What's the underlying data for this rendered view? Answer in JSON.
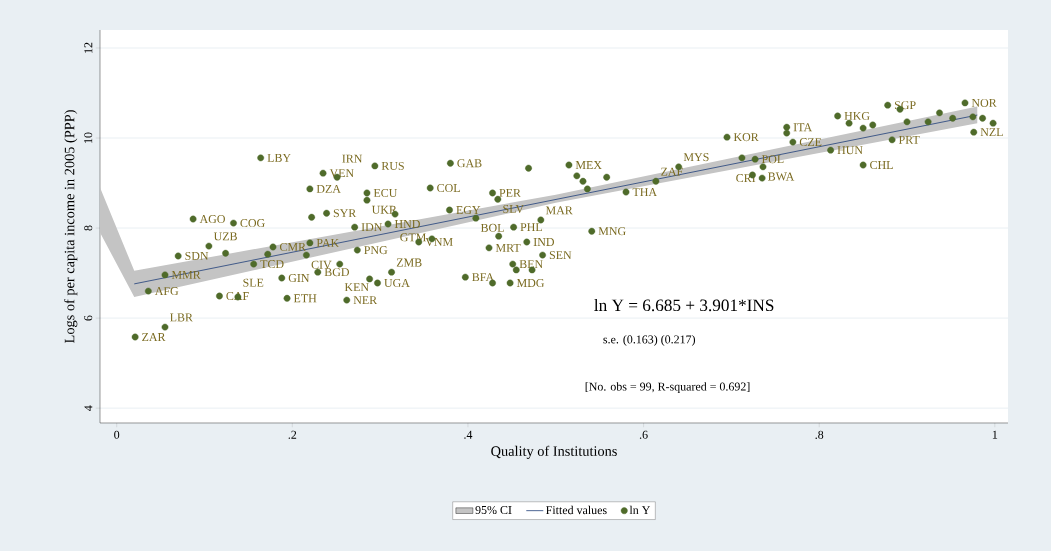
{
  "chart_data": {
    "type": "scatter",
    "xlabel": "Quality of Institutions",
    "ylabel": "Logs of per capita income in 2005 (PPP)",
    "xlim": [
      -0.019,
      1.015
    ],
    "ylim": [
      3.67,
      12.4
    ],
    "xticks": [
      {
        "value": 0,
        "label": "0"
      },
      {
        "value": 0.2,
        "label": ".2"
      },
      {
        "value": 0.4,
        "label": ".4"
      },
      {
        "value": 0.6,
        "label": ".6"
      },
      {
        "value": 0.8,
        "label": ".8"
      },
      {
        "value": 1,
        "label": "1"
      }
    ],
    "yticks": [
      4,
      6,
      8,
      10,
      12
    ],
    "grid": "y",
    "legend": "bottom",
    "marker": "circle",
    "series": [
      {
        "name": "95% CI",
        "type": "area",
        "color": "#c4c4c4",
        "x": [
          -0.019,
          0.02,
          0.5,
          0.98
        ],
        "values": [
          null,
          null,
          null,
          null
        ],
        "lower": [
          7.9,
          6.47,
          8.56,
          10.33
        ],
        "upper": [
          8.9,
          7.05,
          8.74,
          10.7
        ]
      },
      {
        "name": "Fitted values",
        "type": "line",
        "color": "#1f3f7a",
        "line_style": "solid",
        "marker": "none",
        "x": [
          0.02,
          0.98
        ],
        "values": [
          6.76,
          10.51
        ]
      },
      {
        "name": "ln Y",
        "color": "#4f6b2a",
        "x": [
          0.021,
          0.036,
          0.055,
          0.055,
          0.07,
          0.087,
          0.105,
          0.117,
          0.124,
          0.133,
          0.138,
          0.156,
          0.164,
          0.172,
          0.178,
          0.188,
          0.194,
          0.216,
          0.22,
          0.22,
          0.222,
          0.229,
          0.235,
          0.239,
          0.251,
          0.254,
          0.262,
          0.271,
          0.274,
          0.285,
          0.285,
          0.288,
          0.294,
          0.297,
          0.309,
          0.313,
          0.317,
          0.344,
          0.357,
          0.359,
          0.379,
          0.38,
          0.397,
          0.409,
          0.424,
          0.428,
          0.428,
          0.434,
          0.435,
          0.448,
          0.451,
          0.452,
          0.455,
          0.467,
          0.469,
          0.473,
          0.483,
          0.485,
          0.515,
          0.524,
          0.531,
          0.536,
          0.541,
          0.558,
          0.58,
          0.614,
          0.64,
          0.695,
          0.712,
          0.724,
          0.727,
          0.735,
          0.736,
          0.763,
          0.763,
          0.77,
          0.813,
          0.821,
          0.834,
          0.85,
          0.85,
          0.861,
          0.878,
          0.883,
          0.892,
          0.9,
          0.924,
          0.937,
          0.952,
          0.966,
          0.975,
          0.976,
          0.986,
          0.998
        ],
        "values": [
          5.58,
          6.6,
          5.8,
          6.96,
          7.38,
          8.2,
          7.6,
          6.49,
          7.44,
          8.11,
          6.47,
          7.2,
          9.56,
          7.42,
          7.58,
          6.89,
          6.44,
          7.4,
          7.67,
          8.87,
          8.24,
          7.02,
          9.22,
          8.33,
          9.13,
          7.2,
          6.4,
          8.02,
          7.51,
          8.78,
          8.62,
          6.87,
          9.38,
          6.78,
          8.09,
          7.02,
          8.31,
          7.69,
          8.89,
          7.76,
          8.4,
          9.44,
          6.91,
          8.22,
          7.56,
          8.78,
          6.78,
          8.64,
          7.82,
          6.78,
          7.2,
          8.02,
          7.07,
          7.69,
          9.33,
          7.07,
          8.18,
          7.4,
          9.4,
          9.16,
          9.04,
          8.87,
          7.93,
          9.13,
          8.8,
          9.04,
          9.36,
          10.02,
          9.56,
          9.18,
          9.53,
          9.11,
          9.36,
          10.24,
          10.11,
          9.91,
          9.73,
          10.49,
          10.33,
          9.4,
          10.22,
          10.29,
          10.73,
          9.96,
          10.64,
          10.36,
          10.36,
          10.56,
          10.44,
          10.78,
          10.47,
          10.13,
          10.44,
          10.33
        ]
      }
    ],
    "annotations": [
      "ln Y = 6.685 + 3.901*INS",
      "s.e. (0.163) (0.217)",
      "[No. obs = 99, R-squared = 0.692]",
      {
        "text": "ZAR",
        "x": 0.021,
        "y": 5.58
      },
      {
        "text": "AFG",
        "x": 0.036,
        "y": 6.6
      },
      {
        "text": "LBR",
        "x": 0.055,
        "y": 5.8
      },
      {
        "text": "MMR",
        "x": 0.055,
        "y": 6.96
      },
      {
        "text": "SDN",
        "x": 0.07,
        "y": 7.38
      },
      {
        "text": "AGO",
        "x": 0.087,
        "y": 8.2
      },
      {
        "text": "UZB",
        "x": 0.105,
        "y": 7.6
      },
      {
        "text": "CAF",
        "x": 0.117,
        "y": 6.49
      },
      {
        "text": "COG",
        "x": 0.133,
        "y": 8.11
      },
      {
        "text": "SLE",
        "x": 0.138,
        "y": 6.47
      },
      {
        "text": "TCD",
        "x": 0.156,
        "y": 7.2
      },
      {
        "text": "LBY",
        "x": 0.164,
        "y": 9.56
      },
      {
        "text": "CMR",
        "x": 0.178,
        "y": 7.58
      },
      {
        "text": "GIN",
        "x": 0.188,
        "y": 6.89
      },
      {
        "text": "ETH",
        "x": 0.194,
        "y": 6.44
      },
      {
        "text": "CIV",
        "x": 0.216,
        "y": 7.4
      },
      {
        "text": "PAK",
        "x": 0.22,
        "y": 7.67
      },
      {
        "text": "DZA",
        "x": 0.22,
        "y": 8.87
      },
      {
        "text": "SYR",
        "x": 0.239,
        "y": 8.33
      },
      {
        "text": "BGD",
        "x": 0.229,
        "y": 7.02
      },
      {
        "text": "VEN",
        "x": 0.235,
        "y": 9.22
      },
      {
        "text": "IRN",
        "x": 0.251,
        "y": 9.13
      },
      {
        "text": "KEN",
        "x": 0.254,
        "y": 7.2
      },
      {
        "text": "NER",
        "x": 0.262,
        "y": 6.4
      },
      {
        "text": "IDN",
        "x": 0.271,
        "y": 8.02
      },
      {
        "text": "PNG",
        "x": 0.274,
        "y": 7.51
      },
      {
        "text": "ECU",
        "x": 0.285,
        "y": 8.78
      },
      {
        "text": "UKR",
        "x": 0.285,
        "y": 8.62
      },
      {
        "text": "RUS",
        "x": 0.294,
        "y": 9.38
      },
      {
        "text": "UGA",
        "x": 0.297,
        "y": 6.78
      },
      {
        "text": "HND",
        "x": 0.309,
        "y": 8.09
      },
      {
        "text": "ZMB",
        "x": 0.313,
        "y": 7.02
      },
      {
        "text": "GTM",
        "x": 0.317,
        "y": 8.31
      },
      {
        "text": "VNM",
        "x": 0.344,
        "y": 7.69
      },
      {
        "text": "COL",
        "x": 0.357,
        "y": 8.89
      },
      {
        "text": "EGY",
        "x": 0.379,
        "y": 8.4
      },
      {
        "text": "GAB",
        "x": 0.38,
        "y": 9.44
      },
      {
        "text": "BFA",
        "x": 0.397,
        "y": 6.91
      },
      {
        "text": "BOL",
        "x": 0.409,
        "y": 8.22
      },
      {
        "text": "MRT",
        "x": 0.424,
        "y": 7.56
      },
      {
        "text": "PER",
        "x": 0.428,
        "y": 8.78
      },
      {
        "text": "SLV",
        "x": 0.434,
        "y": 8.64
      },
      {
        "text": "MDG",
        "x": 0.448,
        "y": 6.78
      },
      {
        "text": "BEN",
        "x": 0.451,
        "y": 7.2
      },
      {
        "text": "PHL",
        "x": 0.452,
        "y": 8.02
      },
      {
        "text": "IND",
        "x": 0.467,
        "y": 7.69
      },
      {
        "text": "MAR",
        "x": 0.483,
        "y": 8.18
      },
      {
        "text": "SEN",
        "x": 0.485,
        "y": 7.4
      },
      {
        "text": "MEX",
        "x": 0.515,
        "y": 9.4
      },
      {
        "text": "MNG",
        "x": 0.541,
        "y": 7.93
      },
      {
        "text": "THA",
        "x": 0.58,
        "y": 8.8
      },
      {
        "text": "ZAF",
        "x": 0.614,
        "y": 9.04
      },
      {
        "text": "MYS",
        "x": 0.64,
        "y": 9.36
      },
      {
        "text": "KOR",
        "x": 0.695,
        "y": 10.02
      },
      {
        "text": "POL",
        "x": 0.727,
        "y": 9.53
      },
      {
        "text": "BWA",
        "x": 0.736,
        "y": 9.36
      },
      {
        "text": "CRI",
        "x": 0.735,
        "y": 9.11
      },
      {
        "text": "ITA",
        "x": 0.763,
        "y": 10.24
      },
      {
        "text": "CZE",
        "x": 0.77,
        "y": 9.91
      },
      {
        "text": "HUN",
        "x": 0.813,
        "y": 9.73
      },
      {
        "text": "HKG",
        "x": 0.821,
        "y": 10.49
      },
      {
        "text": "CHL",
        "x": 0.85,
        "y": 9.4
      },
      {
        "text": "SGP",
        "x": 0.878,
        "y": 10.73
      },
      {
        "text": "PRT",
        "x": 0.883,
        "y": 9.96
      },
      {
        "text": "NOR",
        "x": 0.966,
        "y": 10.78
      },
      {
        "text": "NZL",
        "x": 0.976,
        "y": 10.13
      }
    ]
  }
}
